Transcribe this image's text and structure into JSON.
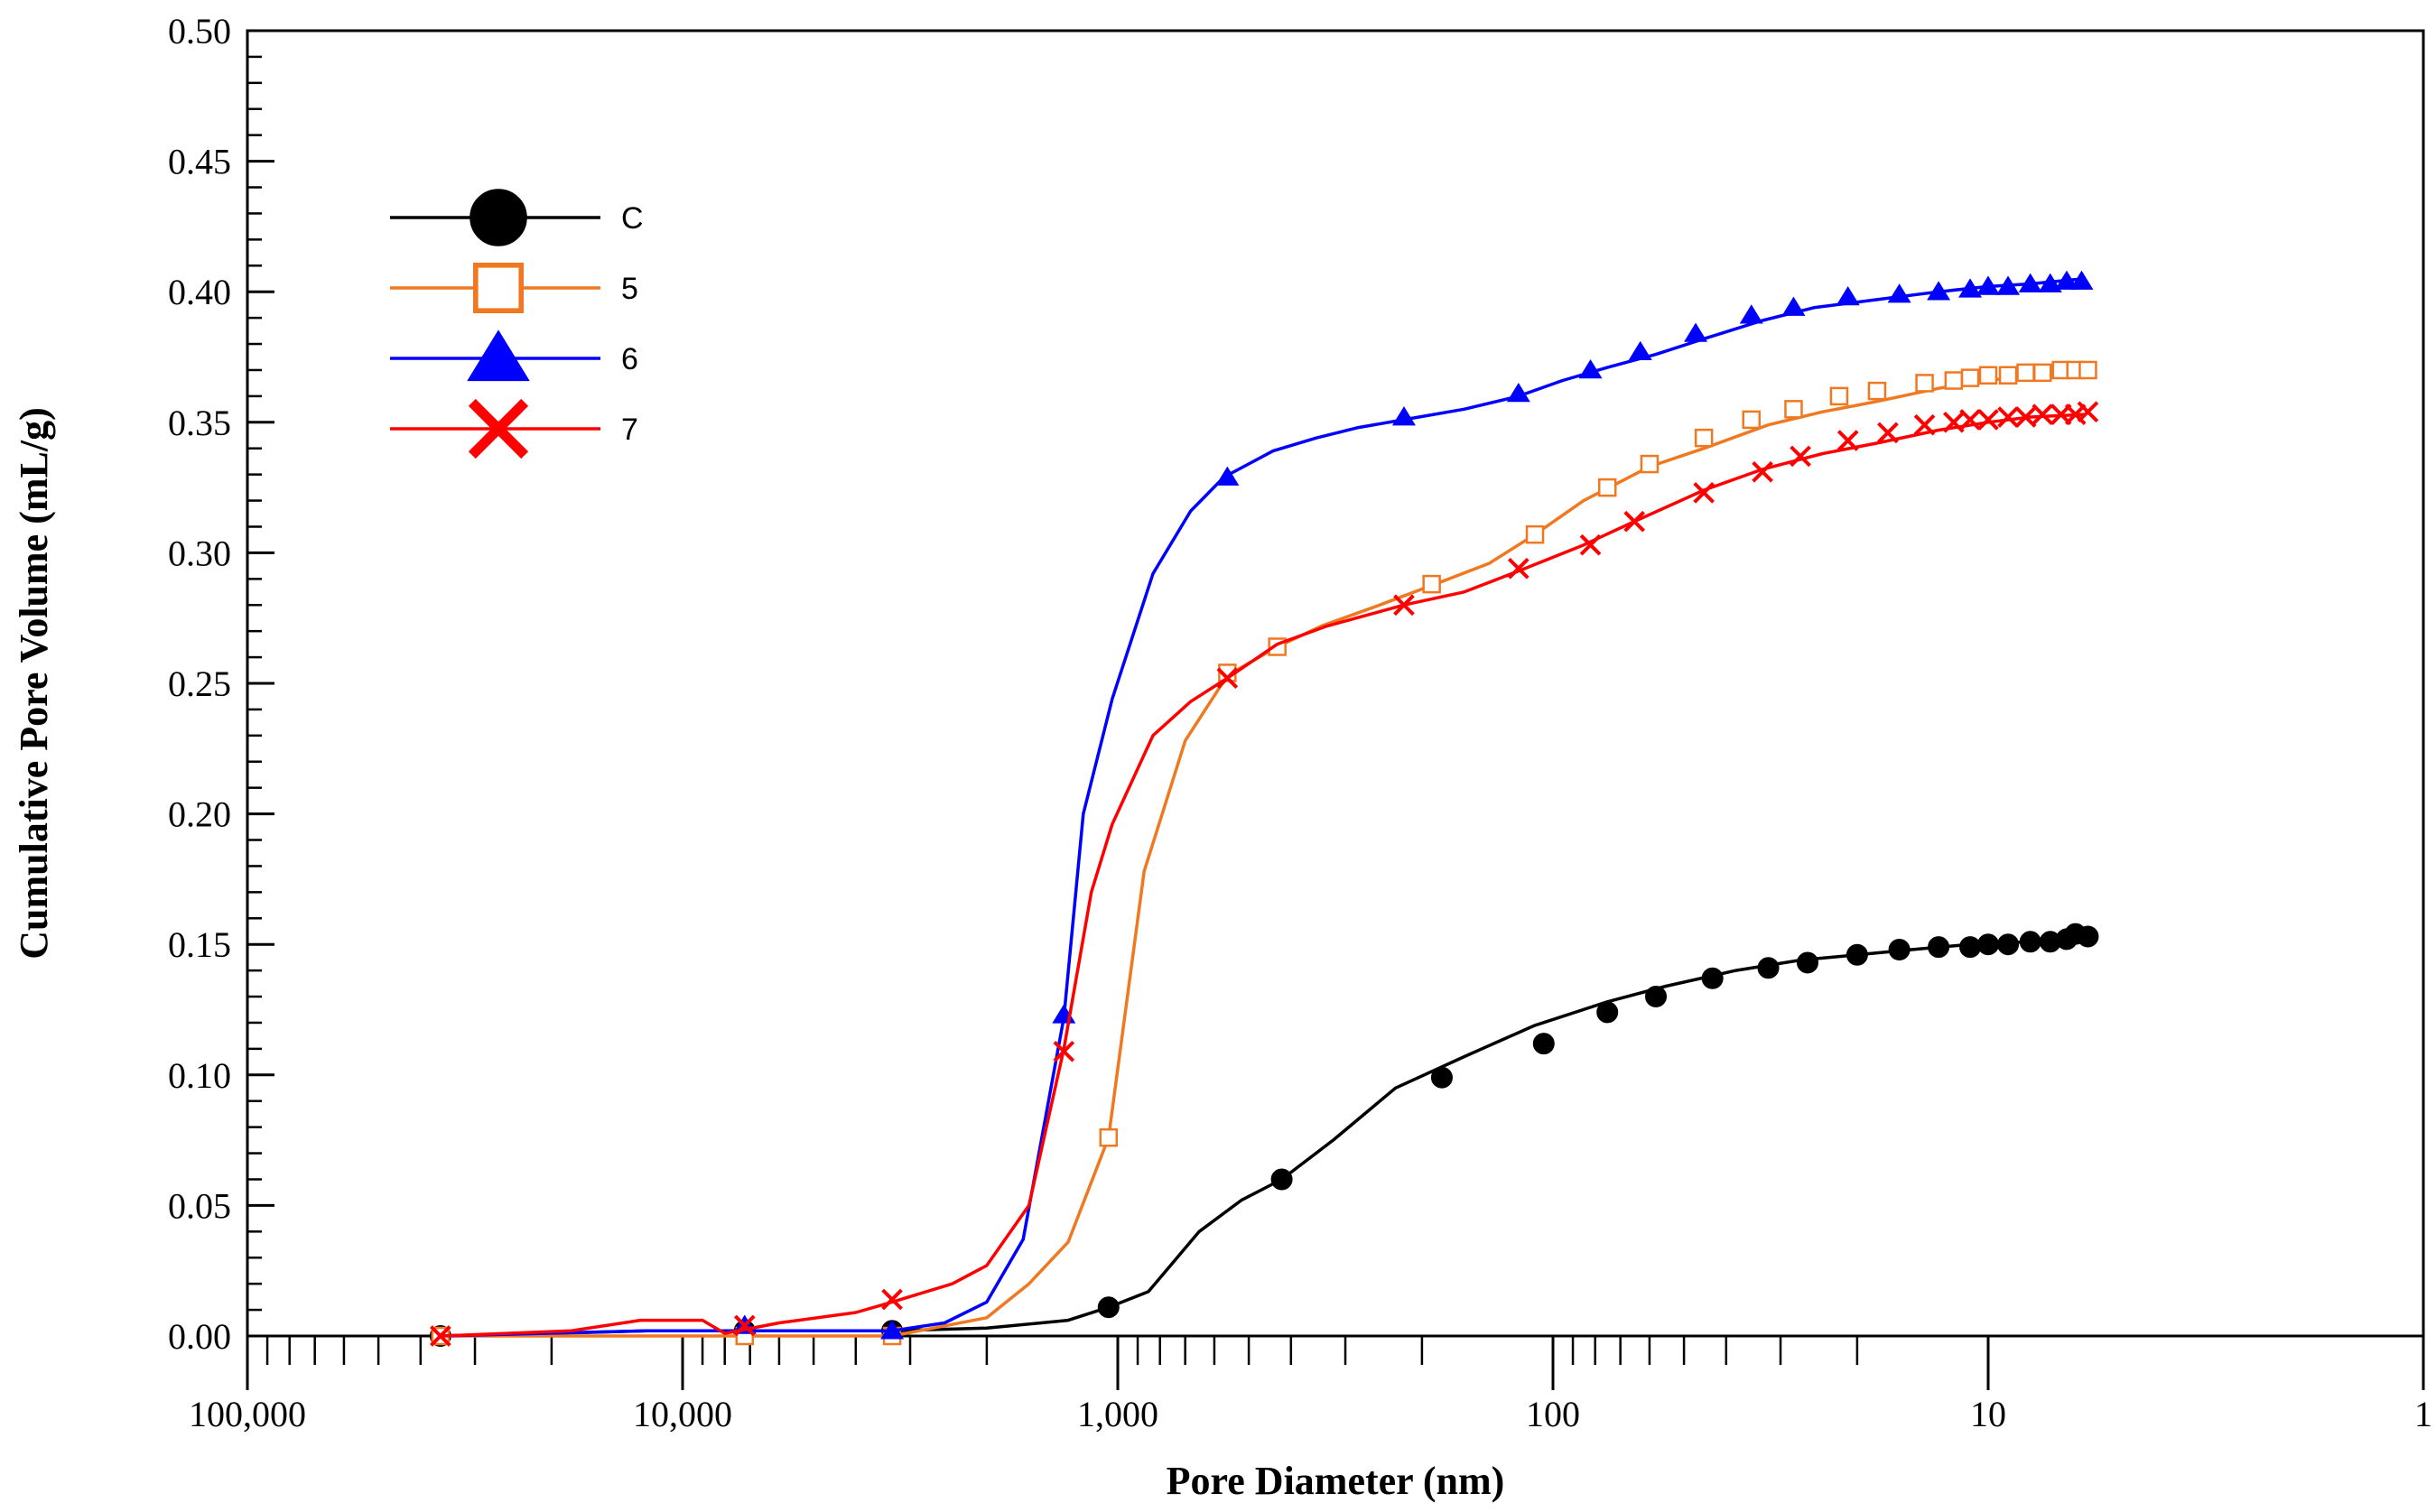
{
  "chart_data": {
    "type": "line",
    "title": "",
    "xlabel": "Pore Diameter  (nm)",
    "ylabel": "Cumulative Pore Volume  (mL/g)",
    "x_scale": "log",
    "x_reversed": true,
    "xlim": [
      100000,
      1
    ],
    "ylim": [
      0,
      0.5
    ],
    "grid": false,
    "legend_position": "top-left",
    "x_ticks": [
      {
        "value": 100000,
        "label": "100,000"
      },
      {
        "value": 10000,
        "label": "10,000"
      },
      {
        "value": 1000,
        "label": "1,000"
      },
      {
        "value": 100,
        "label": "100"
      },
      {
        "value": 10,
        "label": "10"
      },
      {
        "value": 1,
        "label": "1"
      }
    ],
    "y_ticks": [
      {
        "value": 0.0,
        "label": "0.00"
      },
      {
        "value": 0.05,
        "label": "0.05"
      },
      {
        "value": 0.1,
        "label": "0.10"
      },
      {
        "value": 0.15,
        "label": "0.15"
      },
      {
        "value": 0.2,
        "label": "0.20"
      },
      {
        "value": 0.25,
        "label": "0.25"
      },
      {
        "value": 0.3,
        "label": "0.30"
      },
      {
        "value": 0.35,
        "label": "0.35"
      },
      {
        "value": 0.4,
        "label": "0.40"
      },
      {
        "value": 0.45,
        "label": "0.45"
      },
      {
        "value": 0.5,
        "label": "0.50"
      }
    ],
    "series": [
      {
        "name": "C",
        "color": "#000000",
        "marker": "filled-circle",
        "line": [
          [
            36000,
            0.0
          ],
          [
            20000,
            0.001
          ],
          [
            12000,
            0.002
          ],
          [
            7200,
            0.002
          ],
          [
            3300,
            0.002
          ],
          [
            2000,
            0.003
          ],
          [
            1300,
            0.006
          ],
          [
            1050,
            0.011
          ],
          [
            850,
            0.017
          ],
          [
            650,
            0.04
          ],
          [
            520,
            0.052
          ],
          [
            420,
            0.06
          ],
          [
            320,
            0.075
          ],
          [
            230,
            0.095
          ],
          [
            160,
            0.107
          ],
          [
            110,
            0.119
          ],
          [
            75,
            0.128
          ],
          [
            55,
            0.134
          ],
          [
            38,
            0.14
          ],
          [
            27,
            0.144
          ],
          [
            20,
            0.146
          ],
          [
            15,
            0.148
          ],
          [
            11,
            0.15
          ],
          [
            8,
            0.151
          ],
          [
            7,
            0.153
          ],
          [
            6.5,
            0.155
          ],
          [
            6,
            0.154
          ]
        ],
        "points": [
          [
            36000,
            0.0
          ],
          [
            7200,
            0.002
          ],
          [
            3300,
            0.002
          ],
          [
            1050,
            0.011
          ],
          [
            420,
            0.06
          ],
          [
            180,
            0.099
          ],
          [
            105,
            0.112
          ],
          [
            75,
            0.124
          ],
          [
            58,
            0.13
          ],
          [
            43,
            0.137
          ],
          [
            32,
            0.141
          ],
          [
            26,
            0.143
          ],
          [
            20,
            0.146
          ],
          [
            16,
            0.148
          ],
          [
            13,
            0.149
          ],
          [
            11,
            0.149
          ],
          [
            10,
            0.15
          ],
          [
            9,
            0.15
          ],
          [
            8,
            0.151
          ],
          [
            7.2,
            0.151
          ],
          [
            6.6,
            0.152
          ],
          [
            6.3,
            0.154
          ],
          [
            5.9,
            0.153
          ]
        ]
      },
      {
        "name": "5",
        "color": "#f07820",
        "marker": "open-square",
        "line": [
          [
            36000,
            0.0
          ],
          [
            12500,
            0.0
          ],
          [
            7200,
            0.0
          ],
          [
            3300,
            0.0
          ],
          [
            2000,
            0.007
          ],
          [
            1600,
            0.02
          ],
          [
            1300,
            0.036
          ],
          [
            1050,
            0.076
          ],
          [
            870,
            0.178
          ],
          [
            700,
            0.228
          ],
          [
            560,
            0.253
          ],
          [
            430,
            0.264
          ],
          [
            340,
            0.272
          ],
          [
            250,
            0.28
          ],
          [
            180,
            0.289
          ],
          [
            140,
            0.296
          ],
          [
            110,
            0.307
          ],
          [
            85,
            0.32
          ],
          [
            60,
            0.333
          ],
          [
            45,
            0.34
          ],
          [
            32,
            0.349
          ],
          [
            24,
            0.354
          ],
          [
            18,
            0.358
          ],
          [
            13,
            0.363
          ],
          [
            10,
            0.366
          ],
          [
            8,
            0.368
          ],
          [
            6.5,
            0.369
          ],
          [
            5.9,
            0.37
          ]
        ],
        "points": [
          [
            36000,
            0.0
          ],
          [
            7200,
            0.0
          ],
          [
            3300,
            0.0
          ],
          [
            1050,
            0.076
          ],
          [
            560,
            0.254
          ],
          [
            430,
            0.264
          ],
          [
            190,
            0.288
          ],
          [
            110,
            0.307
          ],
          [
            75,
            0.325
          ],
          [
            60,
            0.334
          ],
          [
            45,
            0.344
          ],
          [
            35,
            0.351
          ],
          [
            28,
            0.355
          ],
          [
            22,
            0.36
          ],
          [
            18,
            0.362
          ],
          [
            14,
            0.365
          ],
          [
            12,
            0.366
          ],
          [
            11,
            0.367
          ],
          [
            10,
            0.368
          ],
          [
            9,
            0.368
          ],
          [
            8.2,
            0.369
          ],
          [
            7.5,
            0.369
          ],
          [
            6.8,
            0.37
          ],
          [
            6.3,
            0.37
          ],
          [
            5.9,
            0.37
          ]
        ]
      },
      {
        "name": "6",
        "color": "#0000ff",
        "marker": "filled-triangle",
        "line": [
          [
            36000,
            0.0
          ],
          [
            12000,
            0.002
          ],
          [
            7200,
            0.002
          ],
          [
            3300,
            0.002
          ],
          [
            2500,
            0.005
          ],
          [
            2000,
            0.013
          ],
          [
            1650,
            0.037
          ],
          [
            1330,
            0.122
          ],
          [
            1200,
            0.2
          ],
          [
            1030,
            0.244
          ],
          [
            830,
            0.292
          ],
          [
            680,
            0.316
          ],
          [
            570,
            0.329
          ],
          [
            440,
            0.339
          ],
          [
            350,
            0.344
          ],
          [
            280,
            0.348
          ],
          [
            220,
            0.351
          ],
          [
            160,
            0.355
          ],
          [
            120,
            0.36
          ],
          [
            95,
            0.366
          ],
          [
            75,
            0.371
          ],
          [
            58,
            0.376
          ],
          [
            45,
            0.382
          ],
          [
            33,
            0.389
          ],
          [
            25,
            0.394
          ],
          [
            18,
            0.397
          ],
          [
            13,
            0.4
          ],
          [
            10,
            0.402
          ],
          [
            8,
            0.403
          ],
          [
            6,
            0.405
          ]
        ],
        "points": [
          [
            7200,
            0.004
          ],
          [
            3300,
            0.002
          ],
          [
            1330,
            0.123
          ],
          [
            560,
            0.329
          ],
          [
            220,
            0.352
          ],
          [
            120,
            0.361
          ],
          [
            82,
            0.37
          ],
          [
            63,
            0.377
          ],
          [
            47,
            0.384
          ],
          [
            35,
            0.391
          ],
          [
            28,
            0.394
          ],
          [
            21,
            0.398
          ],
          [
            16,
            0.399
          ],
          [
            13,
            0.4
          ],
          [
            11,
            0.401
          ],
          [
            10,
            0.402
          ],
          [
            9,
            0.402
          ],
          [
            8,
            0.403
          ],
          [
            7.2,
            0.403
          ],
          [
            6.6,
            0.404
          ],
          [
            6.1,
            0.404
          ]
        ]
      },
      {
        "name": "7",
        "color": "#ff0000",
        "marker": "x",
        "line": [
          [
            36000,
            0.0
          ],
          [
            18000,
            0.002
          ],
          [
            12500,
            0.006
          ],
          [
            9000,
            0.006
          ],
          [
            8000,
            0.001
          ],
          [
            6000,
            0.005
          ],
          [
            4000,
            0.009
          ],
          [
            3300,
            0.013
          ],
          [
            2400,
            0.02
          ],
          [
            2000,
            0.027
          ],
          [
            1600,
            0.05
          ],
          [
            1330,
            0.11
          ],
          [
            1150,
            0.17
          ],
          [
            1030,
            0.196
          ],
          [
            830,
            0.23
          ],
          [
            680,
            0.243
          ],
          [
            560,
            0.252
          ],
          [
            430,
            0.265
          ],
          [
            330,
            0.272
          ],
          [
            220,
            0.28
          ],
          [
            160,
            0.285
          ],
          [
            120,
            0.293
          ],
          [
            85,
            0.303
          ],
          [
            65,
            0.312
          ],
          [
            45,
            0.324
          ],
          [
            33,
            0.332
          ],
          [
            24,
            0.338
          ],
          [
            18,
            0.342
          ],
          [
            13,
            0.347
          ],
          [
            10,
            0.35
          ],
          [
            8,
            0.352
          ],
          [
            6,
            0.353
          ]
        ],
        "points": [
          [
            36000,
            0.0
          ],
          [
            7200,
            0.004
          ],
          [
            3300,
            0.014
          ],
          [
            1330,
            0.109
          ],
          [
            560,
            0.252
          ],
          [
            220,
            0.28
          ],
          [
            120,
            0.294
          ],
          [
            82,
            0.303
          ],
          [
            65,
            0.312
          ],
          [
            45,
            0.323
          ],
          [
            33,
            0.331
          ],
          [
            27,
            0.337
          ],
          [
            21,
            0.343
          ],
          [
            17,
            0.346
          ],
          [
            14,
            0.349
          ],
          [
            12,
            0.35
          ],
          [
            11,
            0.351
          ],
          [
            10,
            0.351
          ],
          [
            9,
            0.352
          ],
          [
            8.2,
            0.352
          ],
          [
            7.5,
            0.353
          ],
          [
            6.8,
            0.353
          ],
          [
            6.3,
            0.353
          ],
          [
            5.9,
            0.354
          ]
        ]
      }
    ]
  }
}
